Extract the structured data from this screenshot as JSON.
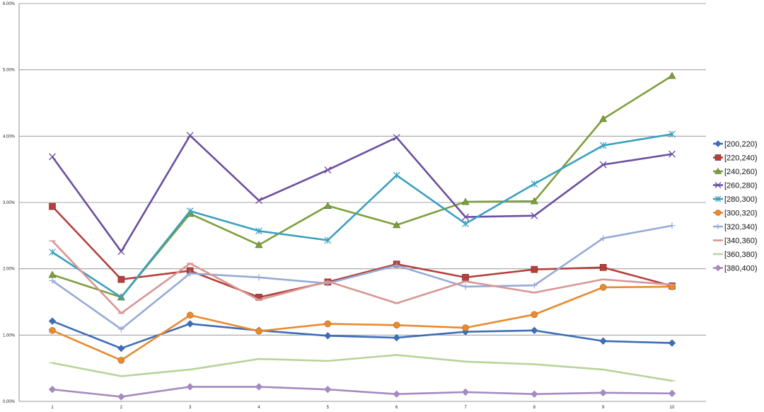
{
  "chart_data": {
    "type": "line",
    "title": "",
    "xlabel": "",
    "ylabel": "",
    "x": [
      1,
      2,
      3,
      4,
      5,
      6,
      7,
      8,
      9,
      10
    ],
    "ylim": [
      0,
      0.06
    ],
    "y_ticks": [
      "0.00%",
      "1.00%",
      "2.00%",
      "3.00%",
      "4.00%",
      "5.00%",
      "6.00%"
    ],
    "grid": "horizontal",
    "legend_position": "right",
    "series": [
      {
        "name": "[200,220)",
        "color": "#3f6db5",
        "marker": "diamond",
        "values": [
          0.0121,
          0.008,
          0.0117,
          0.0107,
          0.0099,
          0.0096,
          0.0105,
          0.0107,
          0.0091,
          0.0088
        ]
      },
      {
        "name": "[220,240)",
        "color": "#b5403c",
        "marker": "square",
        "values": [
          0.0294,
          0.0184,
          0.0197,
          0.0157,
          0.018,
          0.0207,
          0.0187,
          0.0199,
          0.0202,
          0.0174
        ]
      },
      {
        "name": "[240,260)",
        "color": "#7f9f3c",
        "marker": "triangle",
        "values": [
          0.0191,
          0.0157,
          0.0283,
          0.0236,
          0.0295,
          0.0266,
          0.0301,
          0.0302,
          0.0426,
          0.0491
        ]
      },
      {
        "name": "[260,280)",
        "color": "#6b4ea0",
        "marker": "x",
        "values": [
          0.0369,
          0.0226,
          0.0401,
          0.0303,
          0.0349,
          0.0398,
          0.0278,
          0.028,
          0.0357,
          0.0373
        ]
      },
      {
        "name": "[280,300)",
        "color": "#3ba0bf",
        "marker": "star",
        "values": [
          0.0225,
          0.0157,
          0.0287,
          0.0257,
          0.0243,
          0.0341,
          0.0268,
          0.0328,
          0.0386,
          0.0403
        ]
      },
      {
        "name": "[300,320)",
        "color": "#e88a30",
        "marker": "circle",
        "values": [
          0.0107,
          0.0062,
          0.013,
          0.0106,
          0.0117,
          0.0115,
          0.0111,
          0.0131,
          0.0172,
          0.0173
        ]
      },
      {
        "name": "[320,340)",
        "color": "#95abd6",
        "marker": "plus",
        "values": [
          0.0182,
          0.0109,
          0.0193,
          0.0187,
          0.0178,
          0.0205,
          0.0173,
          0.0175,
          0.0246,
          0.0265
        ]
      },
      {
        "name": "[340,360)",
        "color": "#d99694",
        "marker": "dash",
        "values": [
          0.0242,
          0.0133,
          0.0208,
          0.0153,
          0.0181,
          0.0148,
          0.0181,
          0.0164,
          0.0184,
          0.0176
        ]
      },
      {
        "name": "[360,380)",
        "color": "#b8d39a",
        "marker": "dash",
        "values": [
          0.0058,
          0.0038,
          0.0048,
          0.0064,
          0.0061,
          0.007,
          0.006,
          0.0056,
          0.0048,
          0.0031
        ]
      },
      {
        "name": "[380,400)",
        "color": "#a48ac0",
        "marker": "diamond",
        "values": [
          0.0018,
          0.0007,
          0.0022,
          0.0022,
          0.0018,
          0.0011,
          0.0014,
          0.0011,
          0.0013,
          0.0012
        ]
      }
    ]
  }
}
